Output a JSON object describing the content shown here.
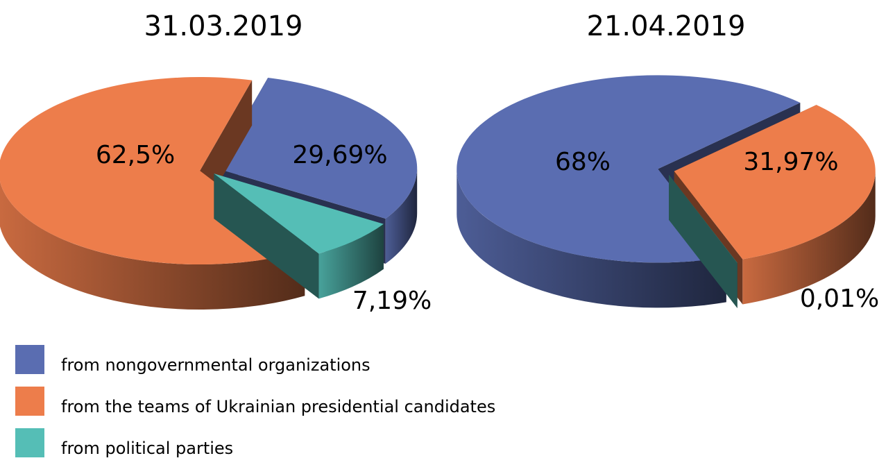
{
  "chart_data": [
    {
      "type": "pie",
      "title": "31.03.2019",
      "values": [
        29.69,
        62.5,
        7.19
      ],
      "value_labels": [
        "29,69%",
        "62,5%",
        "7,19%"
      ]
    },
    {
      "type": "pie",
      "title": "21.04.2019",
      "values": [
        68,
        31.97,
        0.01
      ],
      "value_labels": [
        "68%",
        "31,97%",
        "0,01%"
      ]
    }
  ],
  "legend": {
    "categories": [
      "from nongovernmental organizations",
      "from the teams of Ukrainian presidential candidates",
      "from political parties"
    ],
    "colors": [
      "#5a6db1",
      "#ed7d4b",
      "#55beb6"
    ]
  }
}
